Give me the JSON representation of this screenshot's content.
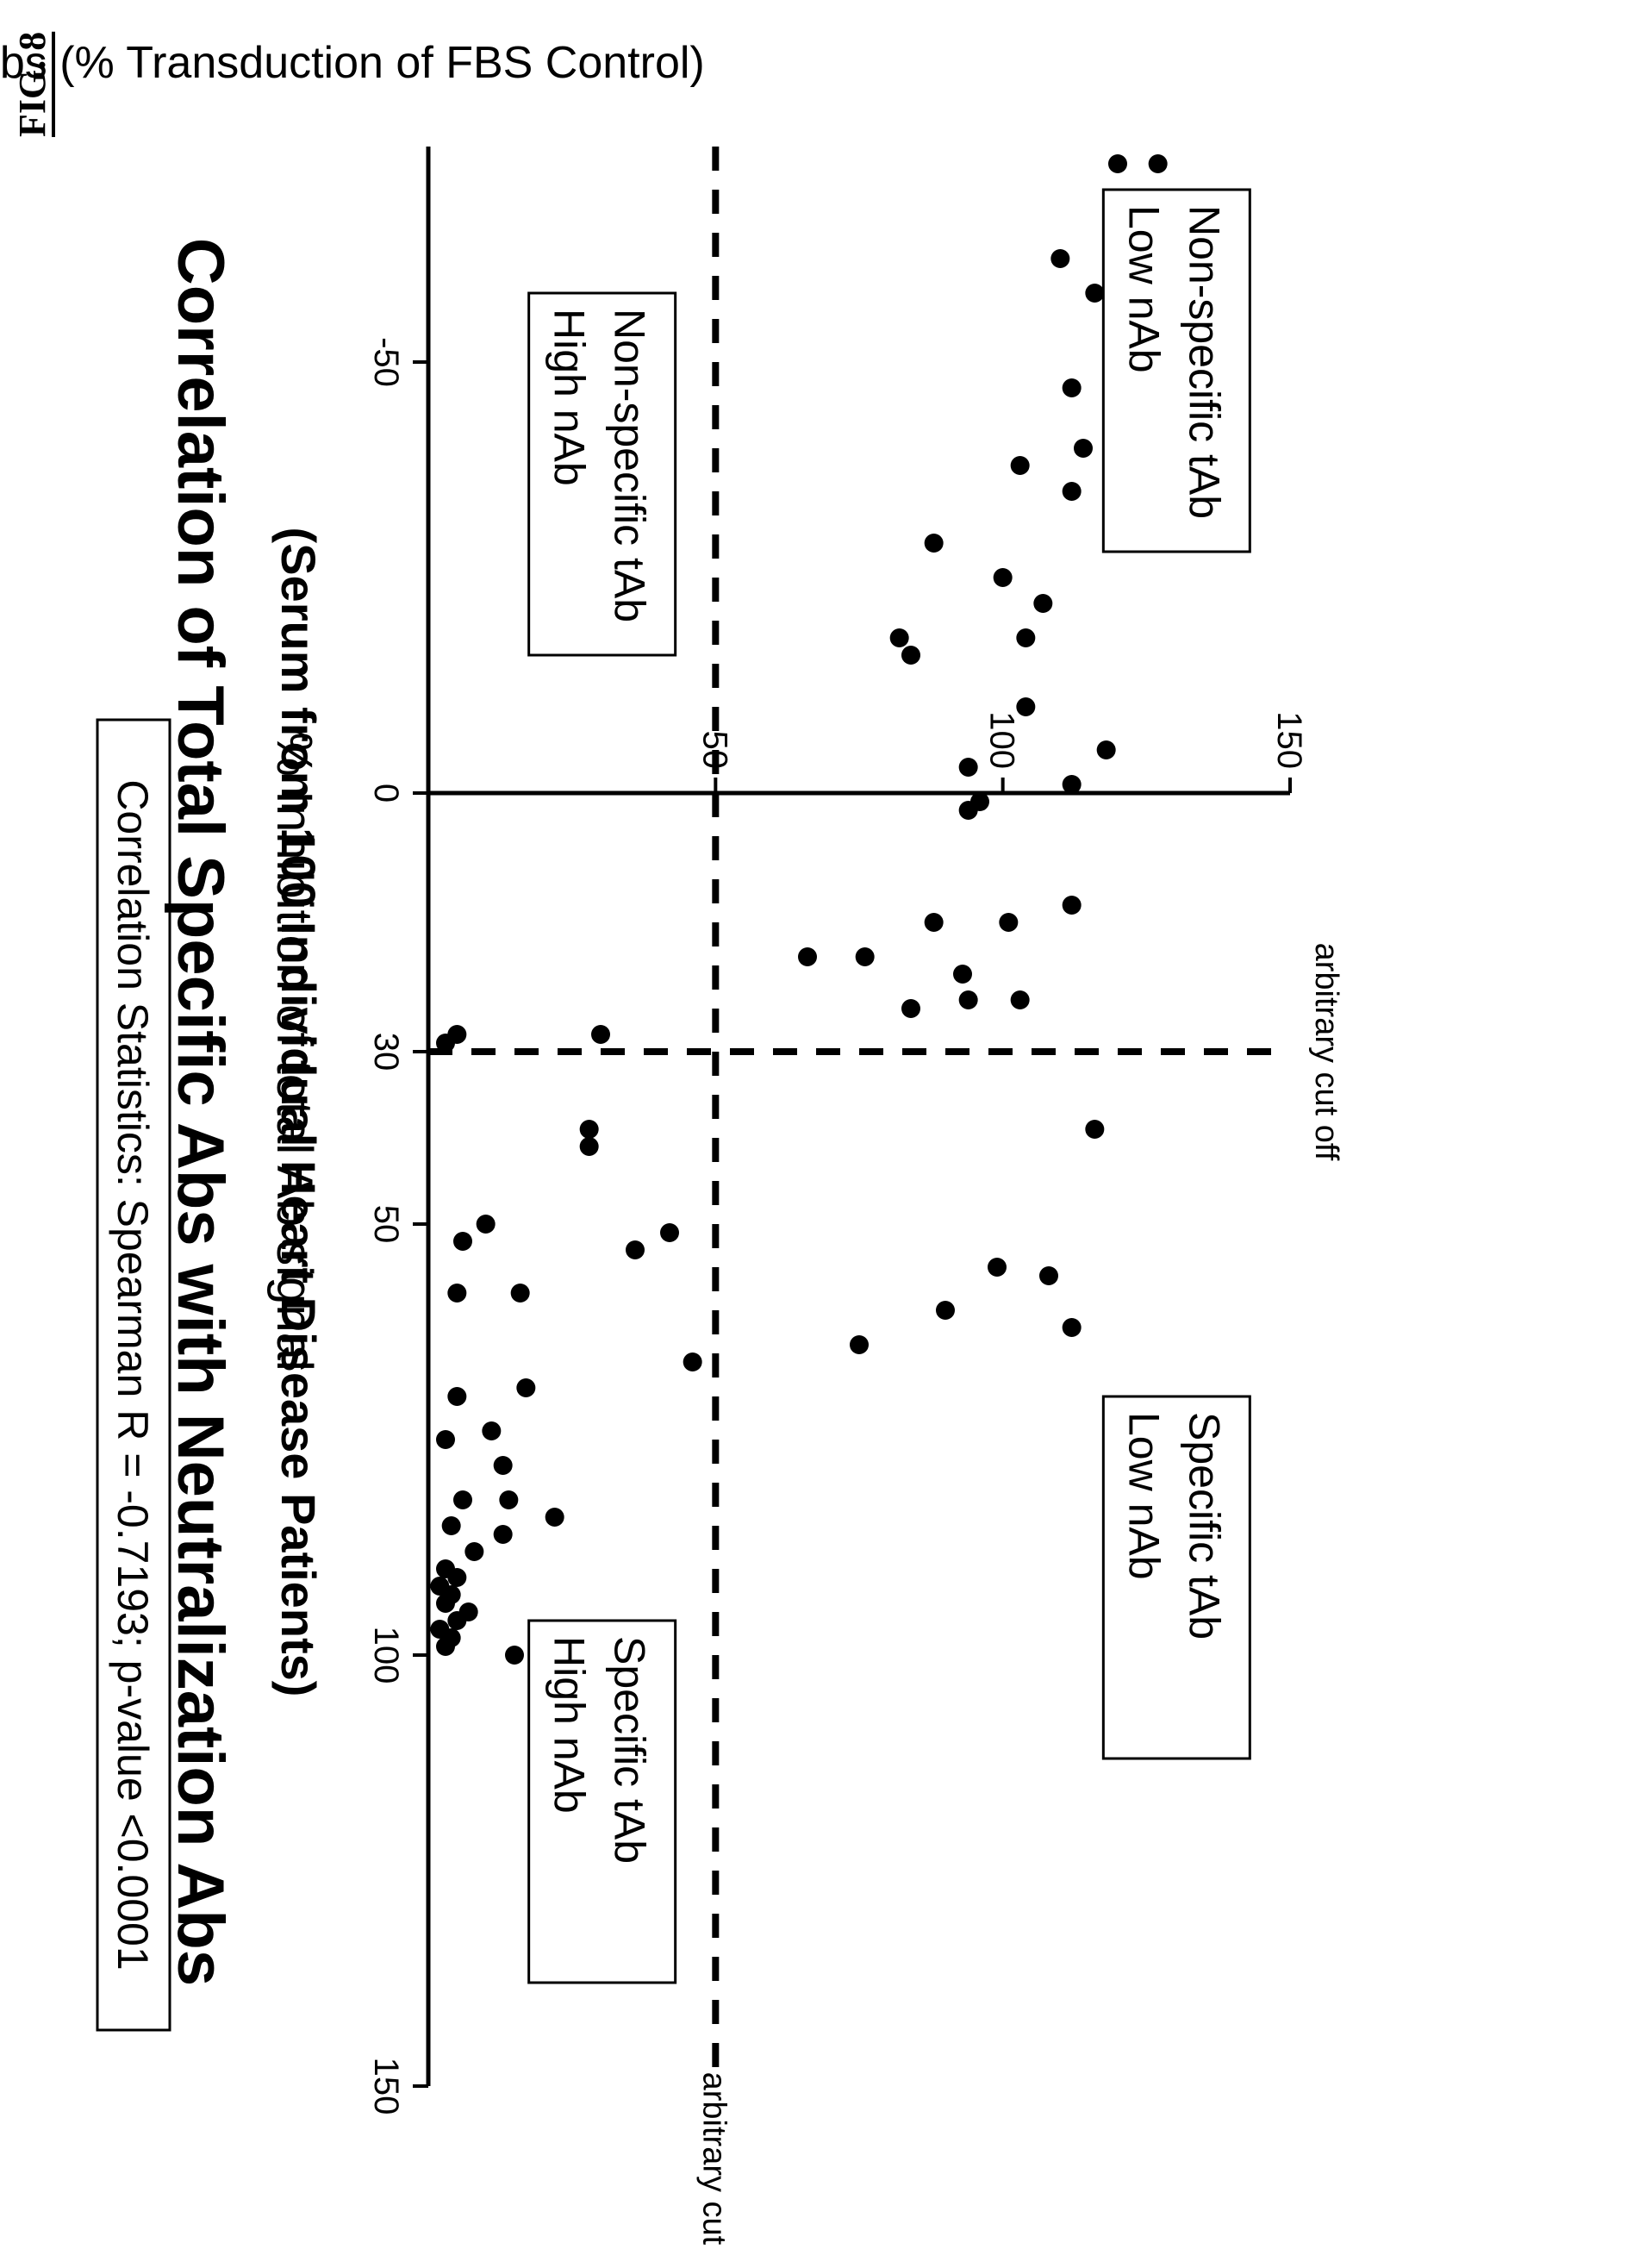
{
  "figure_label": "FIG. 8",
  "chart_data": {
    "type": "scatter",
    "title": "Correlation of Total Specific Abs with Neutralization Abs",
    "subtitle": "(Serum from 100 Individual Heart Disease Patients)",
    "xlabel": "% Inhibition of total Ab signal",
    "ylabel": "nAbs (% Transduction of FBS Control)",
    "xlim": [
      -75,
      150
    ],
    "ylim": [
      0,
      150
    ],
    "x_ticks": [
      -50,
      0,
      30,
      50,
      100,
      150
    ],
    "y_ticks": [
      50,
      100,
      150
    ],
    "x_tick_labels": [
      "-50",
      "0",
      "30",
      "50",
      "100",
      "150"
    ],
    "y_tick_labels": [
      "50",
      "100",
      "150"
    ],
    "cutoffs": {
      "x": 30,
      "y": 50,
      "label_x": "arbitrary cut off",
      "label_y": "arbitrary cut off"
    },
    "quadrant_labels": [
      {
        "line1": "Non-specific  tAb",
        "line2": "Low nAb"
      },
      {
        "line1": "Specific tAb",
        "line2": "Low nAb"
      },
      {
        "line1": "Non-specific  tAb",
        "line2": "High nAb"
      },
      {
        "line1": "Specific tAb",
        "line2": "High nAb"
      }
    ],
    "statistics": "Correlation  Statistics:  Spearman R = -0.7193; p-value <0.0001",
    "grid": false,
    "points": [
      [
        -73,
        127
      ],
      [
        -73,
        120
      ],
      [
        -62,
        110
      ],
      [
        -58,
        116
      ],
      [
        -47,
        112
      ],
      [
        -40,
        114
      ],
      [
        -38,
        103
      ],
      [
        -35,
        112
      ],
      [
        -29,
        88
      ],
      [
        -25,
        100
      ],
      [
        -22,
        107
      ],
      [
        -18,
        104
      ],
      [
        -18,
        82
      ],
      [
        -16,
        84
      ],
      [
        -10,
        104
      ],
      [
        -5,
        118
      ],
      [
        -3,
        94
      ],
      [
        -1,
        112
      ],
      [
        1,
        96
      ],
      [
        2,
        94
      ],
      [
        13,
        112
      ],
      [
        15,
        88
      ],
      [
        15,
        101
      ],
      [
        19,
        76
      ],
      [
        19,
        66
      ],
      [
        21,
        93
      ],
      [
        24,
        103
      ],
      [
        24,
        94
      ],
      [
        25,
        84
      ],
      [
        28,
        30
      ],
      [
        28,
        5
      ],
      [
        29,
        3
      ],
      [
        39,
        116
      ],
      [
        39,
        28
      ],
      [
        41,
        28
      ],
      [
        50,
        10
      ],
      [
        51,
        42
      ],
      [
        52,
        6
      ],
      [
        53,
        36
      ],
      [
        55,
        99
      ],
      [
        56,
        108
      ],
      [
        58,
        16
      ],
      [
        58,
        5
      ],
      [
        60,
        90
      ],
      [
        62,
        112
      ],
      [
        64,
        75
      ],
      [
        66,
        46
      ],
      [
        69,
        17
      ],
      [
        70,
        5
      ],
      [
        74,
        11
      ],
      [
        75,
        3
      ],
      [
        78,
        13
      ],
      [
        82,
        14
      ],
      [
        82,
        6
      ],
      [
        84,
        22
      ],
      [
        85,
        4
      ],
      [
        86,
        13
      ],
      [
        88,
        8
      ],
      [
        90,
        3
      ],
      [
        91,
        5
      ],
      [
        92,
        2
      ],
      [
        93,
        4
      ],
      [
        94,
        3
      ],
      [
        95,
        7
      ],
      [
        96,
        5
      ],
      [
        97,
        2
      ],
      [
        98,
        4
      ],
      [
        99,
        3
      ],
      [
        100,
        15
      ]
    ]
  }
}
